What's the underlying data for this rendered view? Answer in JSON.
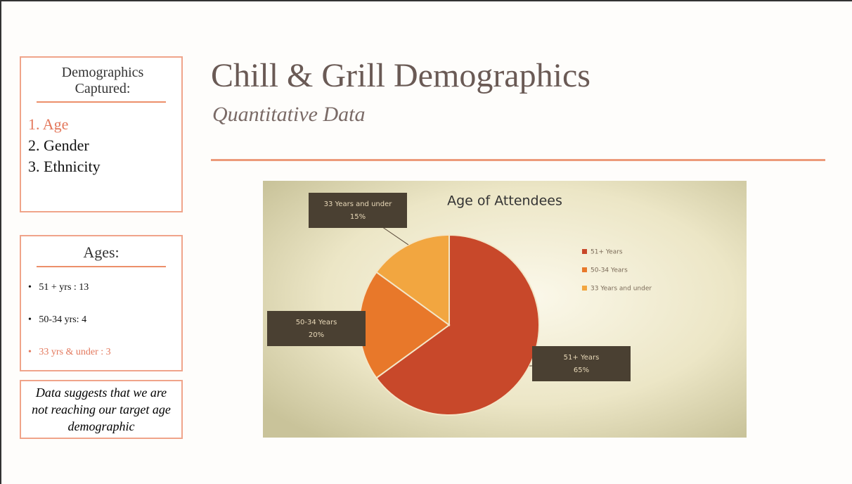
{
  "sidebar": {
    "captured": {
      "title": "Demographics Captured:",
      "items": [
        {
          "number": "1.",
          "label": "Age"
        },
        {
          "number": "2.",
          "label": "Gender"
        },
        {
          "number": "3.",
          "label": "Ethnicity"
        }
      ]
    },
    "ages": {
      "title": "Ages:",
      "items": [
        "51 + yrs : 13",
        "50-34 yrs: 4",
        "33 yrs & under : 3"
      ]
    },
    "note": "Data suggests that we are not reaching our target age demographic"
  },
  "header": {
    "title": "Chill & Grill Demographics",
    "subtitle": "Quantitative Data"
  },
  "chart_data": {
    "type": "pie",
    "title": "Age of Attendees",
    "categories": [
      "51+ Years",
      "50-34 Years",
      "33 Years and under"
    ],
    "values": [
      65,
      20,
      15
    ],
    "value_labels": [
      "65%",
      "20%",
      "15%"
    ],
    "colors": [
      "#c8482a",
      "#e8782a",
      "#f2a640"
    ],
    "legend": "right"
  }
}
